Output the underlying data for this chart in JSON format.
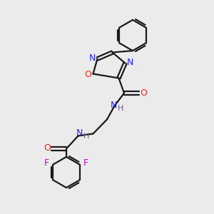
{
  "bg_color": "#ebebeb",
  "bond_color": "#1a1a1a",
  "n_color": "#2020ff",
  "o_color": "#ff2020",
  "f_color": "#cc00cc",
  "h_color": "#606080",
  "line_width": 1.6,
  "figsize": [
    3.0,
    3.0
  ],
  "dpi": 100,
  "xlim": [
    0,
    10
  ],
  "ylim": [
    0,
    10
  ]
}
